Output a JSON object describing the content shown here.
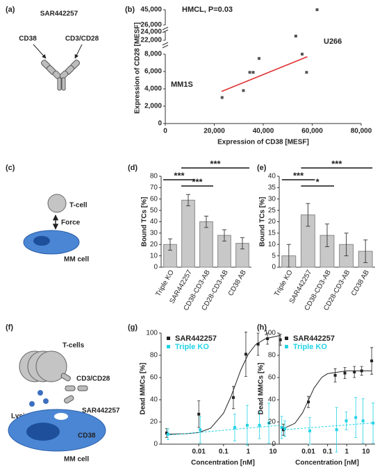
{
  "panel_labels": [
    "(a)",
    "(b)",
    "(c)",
    "(d)",
    "(e)",
    "(f)",
    "(g)",
    "(h)"
  ],
  "diagram_a": {
    "antibody": "SAR442257",
    "left_arm": "CD38",
    "right_arm": "CD3/CD28"
  },
  "diagram_c": {
    "t_cell": "T-cell",
    "force": "Force",
    "mm_cell": "MM cell"
  },
  "diagram_f": {
    "t_cells": "T-cells",
    "receptor": "CD3/CD28",
    "lysis": "Lysis",
    "antibody": "SAR442257",
    "target": "CD38",
    "mm_cell": "MM cell"
  },
  "chart_data": [
    {
      "type": "scatter",
      "x_label": "Expression of CD38 [MESF]",
      "y_label": "Expression of CD28 [MESF]",
      "annotations": [
        "HMCL, P=0.03",
        "U266",
        "MM1S"
      ],
      "color": "#555555",
      "x": [
        23200,
        31900,
        34500,
        35900,
        38300,
        53300,
        55900,
        57700,
        62000
      ],
      "values": [
        3000,
        3800,
        5900,
        5900,
        7500,
        23000,
        8000,
        5900,
        45000
      ],
      "xlim": [
        0,
        80000
      ],
      "xticks": [
        0,
        {
          "value": 20000,
          "label": "20,000"
        },
        {
          "value": 40000,
          "label": "40,000"
        },
        {
          "value": 60000,
          "label": "60,000"
        },
        {
          "value": 80000,
          "label": "80,000"
        }
      ],
      "y_segments": [
        {
          "ylim": [
            0,
            8000
          ],
          "yticks": [
            0,
            {
              "value": 2000,
              "label": "2,000"
            },
            {
              "value": 4000,
              "label": "4,000"
            },
            {
              "value": 6000,
              "label": "6,000"
            },
            {
              "value": 8000,
              "label": "8,000"
            }
          ]
        },
        {
          "ylim": [
            22000,
            24000
          ],
          "yticks": [
            {
              "value": 22000,
              "label": "22,000"
            },
            {
              "value": 24000,
              "label": "24,000"
            }
          ]
        },
        {
          "ylim": [
            26000,
            45000
          ],
          "yticks": [
            {
              "value": 26000,
              "label": "26,000"
            },
            {
              "value": 45000,
              "label": "45,000"
            }
          ]
        }
      ],
      "fit": {
        "color": "#e03030",
        "x": [
          23000,
          58000
        ],
        "values": [
          3700,
          7700
        ]
      }
    },
    {
      "type": "bar",
      "y_label": "Bound TCs [%]",
      "color": "#c8c8c8",
      "categories": [
        "Triple KO",
        "SAR442257",
        "CD38-CD3-AB",
        "CD28-CD3-AB",
        "CD38 AB"
      ],
      "values": [
        20,
        59,
        40,
        28,
        21
      ],
      "errors": [
        5,
        5,
        5,
        5,
        5
      ],
      "ylim": [
        0,
        80
      ],
      "yticks": [
        0,
        10,
        20,
        30,
        40,
        50,
        60,
        70,
        80
      ],
      "brackets": [
        {
          "from": 0,
          "to": 1,
          "label": "***"
        },
        {
          "from": 1,
          "to": 2,
          "label": "***"
        },
        {
          "from": 1,
          "to": 4,
          "label": "***"
        }
      ]
    },
    {
      "type": "bar",
      "y_label": "Bound TCs [%]",
      "color": "#c8c8c8",
      "categories": [
        "Triple KO",
        "SAR442257",
        "CD38-CD3-AB",
        "CD28-CD3-AB",
        "CD38 AB"
      ],
      "values": [
        5,
        23,
        14,
        10,
        7
      ],
      "errors": [
        5,
        5,
        5,
        5,
        5
      ],
      "ylim": [
        0,
        40
      ],
      "yticks": [
        0,
        5,
        10,
        15,
        20,
        25,
        30,
        35,
        40
      ],
      "brackets": [
        {
          "from": 0,
          "to": 1,
          "label": "***"
        },
        {
          "from": 1,
          "to": 2,
          "label": "*"
        },
        {
          "from": 1,
          "to": 4,
          "label": "***"
        }
      ]
    },
    {
      "type": "line",
      "x_label": "Concentration [nM]",
      "y_label": "Dead MMCs [%]",
      "xscale": "log",
      "legend": "upper left",
      "x": [
        0.0005,
        0.01,
        0.25,
        0.8,
        2.5,
        6,
        20
      ],
      "series": [
        {
          "name": "SAR442257",
          "color": "#222222",
          "values": [
            10,
            27,
            42,
            81,
            90,
            95,
            94
          ],
          "errors": [
            4,
            12,
            10,
            20,
            10,
            5,
            5
          ]
        },
        {
          "name": "Triple KO",
          "color": "#22d3e6",
          "values": [
            9,
            13,
            15,
            17,
            17,
            19,
            15
          ],
          "errors": [
            5,
            12,
            12,
            18,
            12,
            18,
            10
          ]
        }
      ],
      "curves": [
        {
          "color": "#222222",
          "dashed": false,
          "x": [
            0.0005,
            0.003,
            0.01,
            0.03,
            0.1,
            0.2,
            0.5,
            1,
            2,
            5,
            20
          ],
          "values": [
            9,
            9.4,
            10.5,
            14.3,
            27.8,
            42.8,
            66.8,
            81,
            89.7,
            95,
            98
          ]
        },
        {
          "color": "#22d3e6",
          "dashed": true,
          "x": [
            0.0005,
            20
          ],
          "values": [
            8,
            17
          ]
        }
      ],
      "xlim": [
        0.0003,
        30
      ],
      "xticks": [
        0.01,
        0.1,
        1,
        10
      ],
      "ylim": [
        0,
        100
      ],
      "yticks": [
        0,
        20,
        40,
        60,
        80,
        100
      ]
    },
    {
      "type": "line",
      "x_label": "Concentration [nM]",
      "y_label": "Dead MMCs [%]",
      "xscale": "log",
      "legend": "upper left",
      "x": [
        0.0005,
        0.01,
        0.25,
        0.8,
        2.5,
        6,
        20
      ],
      "series": [
        {
          "name": "SAR442257",
          "color": "#222222",
          "values": [
            13,
            38,
            62,
            64,
            65,
            66,
            75
          ],
          "errors": [
            5,
            5,
            6,
            5,
            5,
            4,
            12
          ]
        },
        {
          "name": "Triple KO",
          "color": "#22d3e6",
          "values": [
            14,
            12,
            13,
            21,
            24,
            21,
            19
          ],
          "errors": [
            7,
            12,
            20,
            8,
            18,
            20,
            18
          ]
        }
      ],
      "curves": [
        {
          "color": "#222222",
          "dashed": false,
          "x": [
            0.0005,
            0.002,
            0.005,
            0.01,
            0.02,
            0.05,
            0.1,
            1,
            20
          ],
          "values": [
            14,
            18.8,
            28.3,
            39.5,
            50.7,
            60.2,
            63.5,
            66,
            66
          ]
        },
        {
          "color": "#22d3e6",
          "dashed": true,
          "x": [
            0.0005,
            20
          ],
          "values": [
            13,
            19
          ]
        }
      ],
      "xlim": [
        0.0003,
        30
      ],
      "xticks": [
        0.01,
        0.1,
        1,
        10
      ],
      "ylim": [
        0,
        100
      ],
      "yticks": [
        0,
        20,
        40,
        60,
        80,
        100
      ]
    }
  ]
}
